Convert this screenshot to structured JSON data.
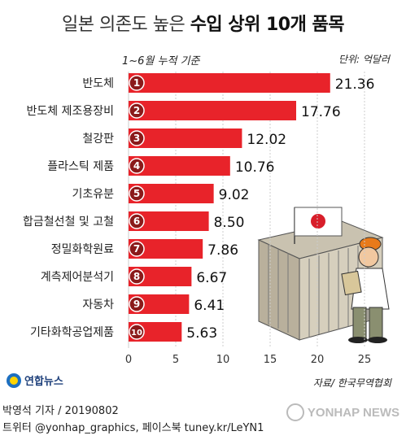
{
  "title_light": "일본 의존도 높은",
  "title_bold": "수입 상위 10개 품목",
  "subtitle": "1~6월 누적 기준",
  "unit": "단위: 억달러",
  "source": "자료/ 한국무역협회",
  "logo_text": "연합뉴스",
  "credit_line1": "박영석 기자 / 20190802",
  "credit_line2": "트위터 @yonhap_graphics, 페이스북 tuney.kr/LeYN1",
  "watermark": "YONHAP NEWS",
  "colors": {
    "bar": "#e8232a",
    "rank_circle": "#8b1a1a",
    "grid": "#cccccc"
  },
  "chart_data": {
    "type": "bar",
    "orientation": "horizontal",
    "categories": [
      "반도체",
      "반도체 제조용장비",
      "철강판",
      "플라스틱 제품",
      "기초유분",
      "합금철선철 및 고철",
      "정밀화학원료",
      "계측제어분석기",
      "자동차",
      "기타화학공업제품"
    ],
    "ranks": [
      "1",
      "2",
      "3",
      "4",
      "5",
      "6",
      "7",
      "8",
      "9",
      "10"
    ],
    "values": [
      21.36,
      17.76,
      12.02,
      10.76,
      9.02,
      8.5,
      7.86,
      6.67,
      6.41,
      5.63
    ],
    "value_labels": [
      "21.36",
      "17.76",
      "12.02",
      "10.76",
      "9.02",
      "8.50",
      "7.86",
      "6.67",
      "6.41",
      "5.63"
    ],
    "xlim": [
      0,
      25
    ],
    "xticks": [
      "0",
      "5",
      "10",
      "15",
      "20",
      "25"
    ],
    "grid": true
  }
}
